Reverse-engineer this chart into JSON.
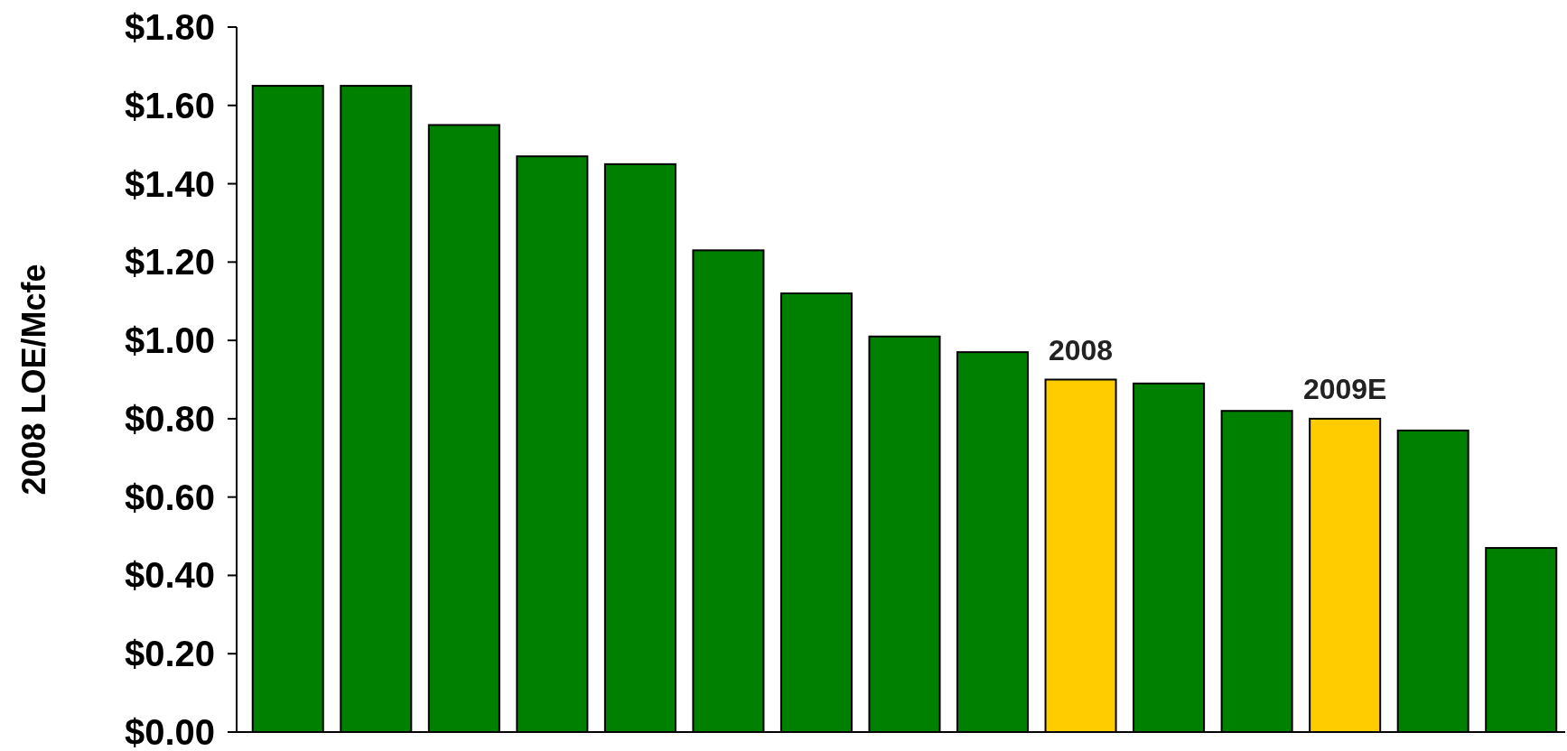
{
  "chart_data": {
    "type": "bar",
    "ylabel": "2008 LOE/Mcfe",
    "categories": [
      null,
      null,
      null,
      null,
      null,
      null,
      null,
      null,
      null,
      null,
      null,
      null,
      null,
      null,
      null
    ],
    "values": [
      1.65,
      1.65,
      1.55,
      1.47,
      1.45,
      1.23,
      1.12,
      1.01,
      0.97,
      0.9,
      0.89,
      0.82,
      0.8,
      0.77,
      0.47
    ],
    "colors": [
      "#008000",
      "#008000",
      "#008000",
      "#008000",
      "#008000",
      "#008000",
      "#008000",
      "#008000",
      "#008000",
      "#ffcc00",
      "#008000",
      "#008000",
      "#ffcc00",
      "#008000",
      "#008000"
    ],
    "ylim": [
      0,
      1.8
    ],
    "yticks": [
      {
        "value": 0,
        "label": "$0.00"
      },
      {
        "value": 0.2,
        "label": "$0.20"
      },
      {
        "value": 0.4,
        "label": "$0.40"
      },
      {
        "value": 0.6,
        "label": "$0.60"
      },
      {
        "value": 0.8,
        "label": "$0.80"
      },
      {
        "value": 1.0,
        "label": "$1.00"
      },
      {
        "value": 1.2,
        "label": "$1.20"
      },
      {
        "value": 1.4,
        "label": "$1.40"
      },
      {
        "value": 1.6,
        "label": "$1.60"
      },
      {
        "value": 1.8,
        "label": "$1.80"
      }
    ],
    "annotations": [
      {
        "text": "2008",
        "y": 0.9
      },
      {
        "text": "2009E",
        "y": 0.8
      }
    ],
    "grid": false
  }
}
